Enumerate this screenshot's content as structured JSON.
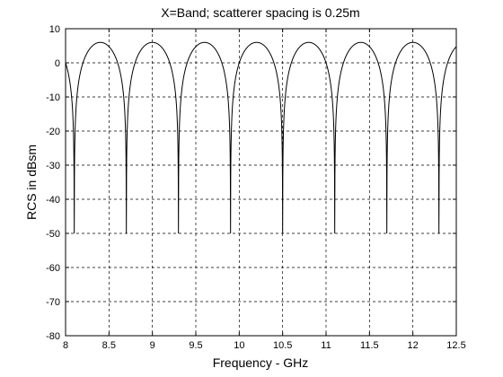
{
  "chart_data": {
    "type": "line",
    "title": "X=Band; scatterer spacing is 0.25m",
    "xlabel": "Frequency - GHz",
    "ylabel": "RCS in dBsm",
    "xlim": [
      8,
      12.5
    ],
    "ylim": [
      -80,
      10
    ],
    "x_ticks": [
      "8",
      "8.5",
      "9",
      "9.5",
      "10",
      "10.5",
      "11",
      "11.5",
      "12",
      "12.5"
    ],
    "y_ticks": [
      "10",
      "0",
      "-10",
      "-20",
      "-30",
      "-40",
      "-50",
      "-60",
      "-70",
      "-80"
    ],
    "grid": true,
    "series": [
      {
        "color": "#000000",
        "x": [
          8.0,
          8.05,
          8.1,
          8.15,
          8.2,
          8.3,
          8.4,
          8.5,
          8.6,
          8.65,
          8.7,
          8.75,
          8.8,
          8.9,
          9.0,
          9.1,
          9.2,
          9.25,
          9.3,
          9.35,
          9.4,
          9.5,
          9.6,
          9.7,
          9.8,
          9.85,
          9.9,
          9.95,
          10.0,
          10.1,
          10.2,
          10.3,
          10.4,
          10.45,
          10.5,
          10.55,
          10.6,
          10.7,
          10.8,
          10.9,
          11.0,
          11.05,
          11.1,
          11.15,
          11.2,
          11.3,
          11.4,
          11.5,
          11.6,
          11.65,
          11.7,
          11.75,
          11.8,
          11.9,
          12.0,
          12.1,
          12.2,
          12.25,
          12.3,
          12.35,
          12.4,
          12.5
        ],
        "y": [
          -1.7,
          -9.2,
          -50.0,
          -9.2,
          -1.7,
          3.9,
          5.9,
          3.9,
          -1.7,
          -9.2,
          -50.0,
          -9.2,
          -1.7,
          3.9,
          5.9,
          3.9,
          -1.7,
          -9.2,
          -50.0,
          -9.2,
          -1.7,
          3.9,
          5.9,
          3.9,
          -1.7,
          -9.2,
          -50.0,
          -9.2,
          -1.7,
          3.9,
          5.9,
          3.9,
          -1.7,
          -9.2,
          -50.0,
          -9.2,
          -1.7,
          3.9,
          5.9,
          3.9,
          -1.7,
          -9.2,
          -50.0,
          -9.2,
          -1.7,
          3.9,
          5.9,
          3.9,
          -1.7,
          -9.2,
          -50.0,
          -9.2,
          -1.7,
          3.9,
          5.9,
          3.9,
          -1.7,
          -9.2,
          -50.0,
          -9.2,
          -1.7,
          3.9
        ]
      }
    ]
  }
}
